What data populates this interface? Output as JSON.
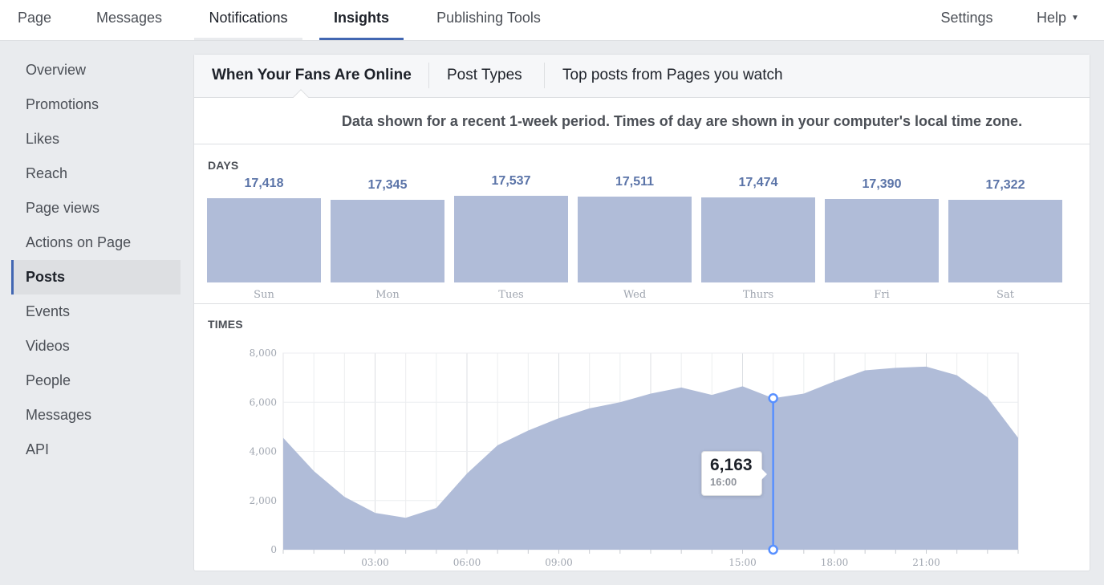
{
  "topnav": {
    "tabs": [
      {
        "label": "Page"
      },
      {
        "label": "Messages"
      },
      {
        "label": "Notifications"
      },
      {
        "label": "Insights"
      },
      {
        "label": "Publishing Tools"
      }
    ],
    "settings": "Settings",
    "help": "Help"
  },
  "sidebar": {
    "items": [
      {
        "label": "Overview"
      },
      {
        "label": "Promotions"
      },
      {
        "label": "Likes"
      },
      {
        "label": "Reach"
      },
      {
        "label": "Page views"
      },
      {
        "label": "Actions on Page"
      },
      {
        "label": "Posts"
      },
      {
        "label": "Events"
      },
      {
        "label": "Videos"
      },
      {
        "label": "People"
      },
      {
        "label": "Messages"
      },
      {
        "label": "API"
      }
    ],
    "active": "Posts"
  },
  "subtabs": [
    {
      "label": "When Your Fans Are Online"
    },
    {
      "label": "Post Types"
    },
    {
      "label": "Top posts from Pages you watch"
    }
  ],
  "notice": "Data shown for a recent 1-week period. Times of day are shown in your computer's local time zone.",
  "days_label": "DAYS",
  "times_label": "TIMES",
  "colors": {
    "accent": "#4267b2",
    "bar_fill": "#b0bcd8",
    "marker": "#5890ff"
  },
  "chart_data": [
    {
      "type": "bar",
      "title": "DAYS",
      "categories": [
        "Sun",
        "Mon",
        "Tues",
        "Wed",
        "Thurs",
        "Fri",
        "Sat"
      ],
      "value_labels": [
        "17,418",
        "17,345",
        "17,537",
        "17,511",
        "17,474",
        "17,390",
        "17,322"
      ],
      "values": [
        17418,
        17345,
        17537,
        17511,
        17474,
        17390,
        17322
      ]
    },
    {
      "type": "area",
      "title": "TIMES",
      "x": [
        0,
        1,
        2,
        3,
        4,
        5,
        6,
        7,
        8,
        9,
        10,
        11,
        12,
        13,
        14,
        15,
        16,
        17,
        18,
        19,
        20,
        21,
        22,
        23,
        24
      ],
      "x_tick_labels": [
        "03:00",
        "06:00",
        "09:00",
        "15:00",
        "18:00",
        "21:00"
      ],
      "x_tick_values": [
        3,
        6,
        9,
        15,
        18,
        21
      ],
      "y_ticks": [
        "0",
        "2,000",
        "4,000",
        "6,000",
        "8,000"
      ],
      "y_tick_values": [
        0,
        2000,
        4000,
        6000,
        8000
      ],
      "ylim": [
        0,
        8000
      ],
      "values": [
        4550,
        3200,
        2150,
        1500,
        1300,
        1700,
        3100,
        4250,
        4850,
        5350,
        5750,
        6000,
        6350,
        6600,
        6300,
        6650,
        6163,
        6350,
        6850,
        7300,
        7400,
        7450,
        7100,
        6200,
        4550
      ],
      "highlight": {
        "x": 16,
        "value_label": "6,163",
        "time_label": "16:00"
      },
      "grid": true
    }
  ]
}
